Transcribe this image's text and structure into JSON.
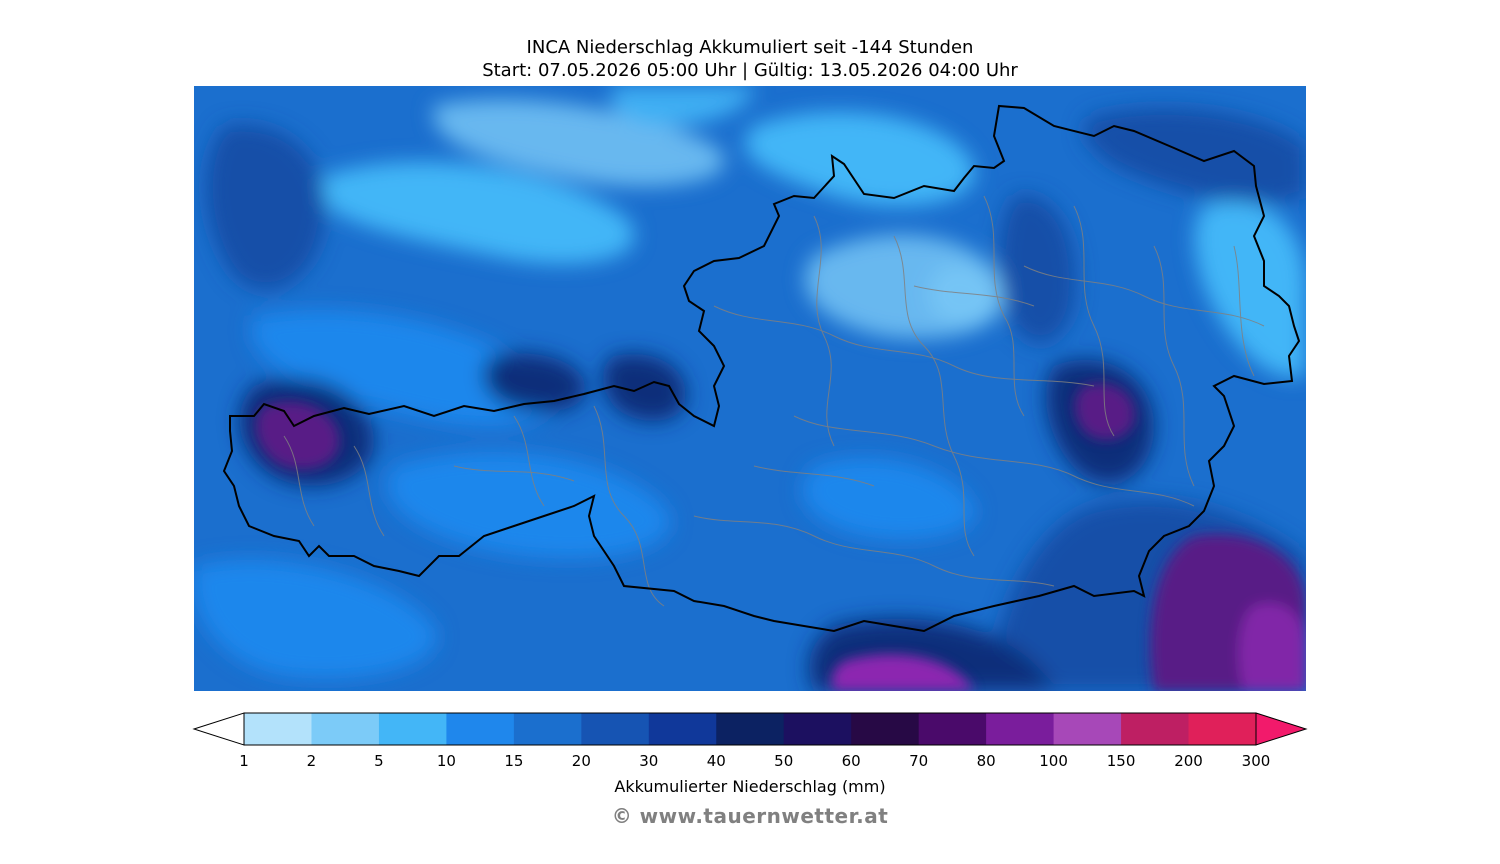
{
  "title": {
    "line1": "INCA Niederschlag Akkumuliert seit -144 Stunden",
    "line2": "Start: 07.05.2026 05:00 Uhr | Gültig: 13.05.2026 04:00 Uhr"
  },
  "map": {
    "region": "Austria",
    "background_color": "#1b6fce",
    "regions": [
      {
        "name": "very-dark-region",
        "color": "#0c2e7a"
      },
      {
        "name": "dark-blue-region",
        "color": "#1550a8"
      },
      {
        "name": "medium-blue-region",
        "color": "#1f87ec"
      },
      {
        "name": "light-blue-region",
        "color": "#43b6f7"
      },
      {
        "name": "lightest-blue-region",
        "color": "#7ccbf8"
      },
      {
        "name": "purple-region",
        "color": "#581a86"
      },
      {
        "name": "magenta-region",
        "color": "#8c28b0"
      }
    ],
    "country_border_color": "#000000",
    "district_border_color": "#808080"
  },
  "colorbar": {
    "label": "Akkumulierter Niederschlag (mm)",
    "ticks": [
      "1",
      "2",
      "5",
      "10",
      "15",
      "20",
      "30",
      "40",
      "50",
      "60",
      "70",
      "80",
      "100",
      "150",
      "200",
      "300"
    ],
    "colors": [
      "#b3e2fb",
      "#7ccbf8",
      "#43b6f7",
      "#1f87ec",
      "#1b6fce",
      "#1654b3",
      "#10389a",
      "#0c2262",
      "#1c1060",
      "#270945",
      "#4a0a6a",
      "#7a1d9c",
      "#a748b8",
      "#be1f63",
      "#e0205a"
    ],
    "over_color": "#f21a6b",
    "under_color": "#ffffff"
  },
  "copyright": "© www.tauernwetter.at"
}
